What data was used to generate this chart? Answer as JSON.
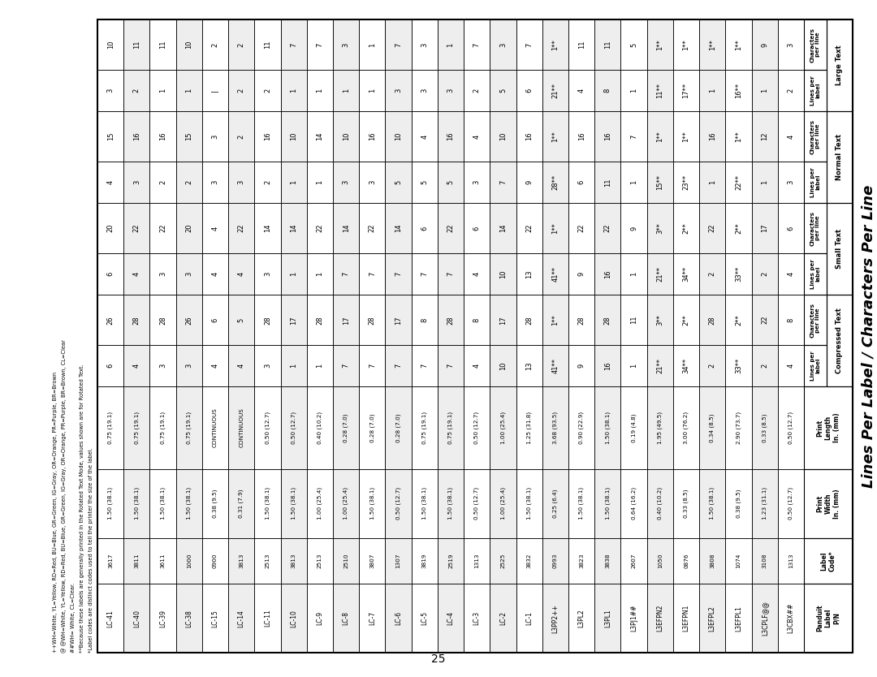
{
  "title": "Lines Per Label / Characters Per Line",
  "footnotes": [
    "*Label codes are distinct codes used to tell the printer the size of the label.",
    "**Because these labels are generally printed in the Rotated Text Mode, values shown are for Rotated Text.",
    "##WH= White, CL=Clear.",
    "@ @WH=White, YL=Yellow, RD=Red, BU=Blue, GR=Green, IG=Gray, OR=Orange, PR=Purple, BR=Brown, CL=Clear",
    "++WH=White, YL=Yellow, RD=Red, BU=Blue, GR=Green, IG=Gray, OR=Orange, PR=Purple, BR=Brown"
  ],
  "page_number": "25",
  "rows": [
    [
      "L3CBX##",
      "1313",
      "0.50 (12.7)",
      "0.50 (12.7)",
      "4",
      "8",
      "4",
      "6",
      "3",
      "4",
      "2",
      "3"
    ],
    [
      "L3CPLF@@",
      "3108",
      "1.23 (31.1)",
      "0.33 (8.5)",
      "2",
      "22",
      "2",
      "17",
      "1",
      "12",
      "1",
      "9"
    ],
    [
      "L3EFPL1",
      "1074",
      "0.38 (9.5)",
      "2.90 (73.7)",
      "33**",
      "2**",
      "33**",
      "2**",
      "22**",
      "1**",
      "16**",
      "1**"
    ],
    [
      "L3EFPL2",
      "3808",
      "1.50 (38.1)",
      "0.34 (8.5)",
      "2",
      "28",
      "2",
      "22",
      "1",
      "16",
      "1",
      "1**"
    ],
    [
      "L3EFPN1",
      "0876",
      "0.33 (8.5)",
      "3.00 (76.2)",
      "34**",
      "2**",
      "34**",
      "2**",
      "23**",
      "1**",
      "17**",
      "1**"
    ],
    [
      "L3EFPN2",
      "1050",
      "0.40 (10.2)",
      "1.95 (49.5)",
      "21**",
      "3**",
      "21**",
      "3**",
      "15**",
      "1**",
      "11**",
      "1**"
    ],
    [
      "L3PJ1##",
      "2607",
      "0.64 (16.2)",
      "0.19 (4.8)",
      "1",
      "11",
      "1",
      "9",
      "1",
      "7",
      "1",
      "5"
    ],
    [
      "L3PL1",
      "3838",
      "1.50 (38.1)",
      "1.50 (38.1)",
      "16",
      "28",
      "16",
      "22",
      "11",
      "16",
      "8",
      "11"
    ],
    [
      "L3PL2",
      "3823",
      "1.50 (38.1)",
      "0.90 (22.9)",
      "9",
      "28",
      "9",
      "22",
      "6",
      "16",
      "4",
      "11"
    ],
    [
      "L3PP2++",
      "0993",
      "0.25 (6.4)",
      "3.68 (93.5)",
      "41**",
      "1**",
      "41**",
      "1**",
      "28**",
      "1**",
      "21**",
      "1**"
    ],
    [
      "LC-1",
      "3832",
      "1.50 (38.1)",
      "1.25 (31.8)",
      "13",
      "28",
      "13",
      "22",
      "9",
      "16",
      "6",
      "7"
    ],
    [
      "LC-2",
      "2525",
      "1.00 (25.4)",
      "1.00 (25.4)",
      "10",
      "17",
      "10",
      "14",
      "7",
      "10",
      "5",
      "3"
    ],
    [
      "LC-3",
      "1313",
      "0.50 (12.7)",
      "0.50 (12.7)",
      "4",
      "8",
      "4",
      "6",
      "3",
      "4",
      "2",
      "7"
    ],
    [
      "LC-4",
      "2519",
      "1.50 (38.1)",
      "0.75 (19.1)",
      "7",
      "28",
      "7",
      "22",
      "5",
      "16",
      "3",
      "1"
    ],
    [
      "LC-5",
      "3819",
      "1.50 (38.1)",
      "0.75 (19.1)",
      "7",
      "8",
      "7",
      "6",
      "5",
      "4",
      "3",
      "3"
    ],
    [
      "LC-6",
      "1307",
      "0.50 (12.7)",
      "0.28 (7.0)",
      "7",
      "17",
      "7",
      "14",
      "5",
      "10",
      "3",
      "7"
    ],
    [
      "LC-7",
      "3807",
      "1.50 (38.1)",
      "0.28 (7.0)",
      "7",
      "28",
      "7",
      "22",
      "3",
      "16",
      "1",
      "1"
    ],
    [
      "LC-8",
      "2510",
      "1.00 (25.4)",
      "0.28 (7.0)",
      "7",
      "17",
      "7",
      "14",
      "3",
      "10",
      "1",
      "3"
    ],
    [
      "LC-9",
      "2513",
      "1.00 (25.4)",
      "0.40 (10.2)",
      "1",
      "28",
      "1",
      "22",
      "1",
      "14",
      "1",
      "7"
    ],
    [
      "LC-10",
      "3813",
      "1.50 (38.1)",
      "0.50 (12.7)",
      "1",
      "17",
      "1",
      "14",
      "1",
      "10",
      "1",
      "7"
    ],
    [
      "LC-11",
      "2513",
      "1.50 (38.1)",
      "0.50 (12.7)",
      "3",
      "28",
      "3",
      "14",
      "2",
      "16",
      "2",
      "11"
    ],
    [
      "LC-14",
      "3813",
      "0.31 (7.9)",
      "CONTINUOUS",
      "4",
      "5",
      "4",
      "22",
      "3",
      "2",
      "2",
      "2"
    ],
    [
      "LC-15",
      "0900",
      "0.38 (9.5)",
      "CONTINUOUS",
      "4",
      "6",
      "4",
      "4",
      "3",
      "3",
      "|",
      "2"
    ],
    [
      "LC-38",
      "1000",
      "1.50 (38.1)",
      "0.75 (19.1)",
      "3",
      "26",
      "3",
      "20",
      "2",
      "15",
      "1",
      "10"
    ],
    [
      "LC-39",
      "3611",
      "1.50 (38.1)",
      "0.75 (19.1)",
      "3",
      "28",
      "3",
      "22",
      "2",
      "16",
      "1",
      "11"
    ],
    [
      "LC-40",
      "3811",
      "1.50 (38.1)",
      "0.75 (19.1)",
      "4",
      "28",
      "4",
      "22",
      "3",
      "16",
      "2",
      "11"
    ],
    [
      "LC-41",
      "3617",
      "1.50 (38.1)",
      "0.75 (19.1)",
      "6",
      "26",
      "6",
      "20",
      "4",
      "15",
      "3",
      "10"
    ]
  ]
}
